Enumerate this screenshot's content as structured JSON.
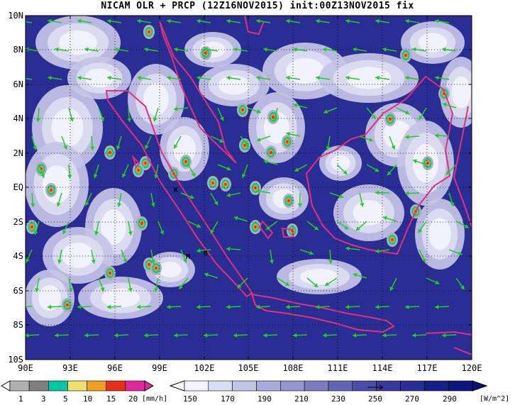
{
  "title": "NICAM OLR + PRCP (12Z16NOV2015) init:00Z13NOV2015 fix",
  "map": {
    "lat_labels": [
      "10N",
      "8N",
      "6N",
      "4N",
      "2N",
      "EQ",
      "2S",
      "4S",
      "6S",
      "8S",
      "10S"
    ],
    "lon_labels": [
      "90E",
      "93E",
      "96E",
      "99E",
      "102E",
      "105E",
      "108E",
      "111E",
      "114E",
      "117E",
      "120E"
    ],
    "place_labels": [
      "K",
      "M",
      "B"
    ],
    "colors": {
      "ocean": "#2a2d94",
      "cloud_white": "#ffffff",
      "coastline": "#e0307f",
      "wind_vector": "#22cc22",
      "grid": "#000000"
    }
  },
  "precip_colorbar": {
    "labels": [
      "1",
      "3",
      "5",
      "10",
      "15",
      "20"
    ],
    "unit": "[mm/h]",
    "colors": [
      "#b0b0b0",
      "#808080",
      "#00c8a0",
      "#f0e070",
      "#f0a020",
      "#e83018",
      "#e0289a"
    ]
  },
  "olr_colorbar": {
    "labels": [
      "150",
      "170",
      "190",
      "210",
      "230",
      "250",
      "270",
      "290"
    ],
    "unit": "[W/m^2]",
    "colors": [
      "#f4f4ff",
      "#dcdcf2",
      "#c4c4e6",
      "#acacda",
      "#9494ce",
      "#7c7cc2",
      "#6464b6",
      "#4c4caa",
      "#3a3a9e",
      "#2a2d94",
      "#1c1f88",
      "#10147c"
    ]
  }
}
